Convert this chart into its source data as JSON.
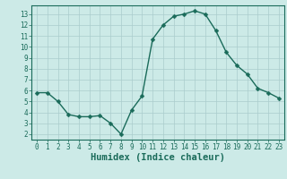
{
  "xlabel": "Humidex (Indice chaleur)",
  "ylabel": "",
  "x": [
    0,
    1,
    2,
    3,
    4,
    5,
    6,
    7,
    8,
    9,
    10,
    11,
    12,
    13,
    14,
    15,
    16,
    17,
    18,
    19,
    20,
    21,
    22,
    23
  ],
  "y": [
    5.8,
    5.8,
    5.0,
    3.8,
    3.6,
    3.6,
    3.7,
    3.0,
    2.0,
    4.2,
    5.5,
    10.7,
    12.0,
    12.8,
    13.0,
    13.3,
    13.0,
    11.5,
    9.5,
    8.3,
    7.5,
    6.2,
    5.8,
    5.3
  ],
  "line_color": "#1a6b5a",
  "marker": "D",
  "markersize": 2.5,
  "linewidth": 1.0,
  "bg_color": "#cceae7",
  "grid_color": "#aacccc",
  "ylim": [
    1.5,
    13.8
  ],
  "xlim": [
    -0.5,
    23.5
  ],
  "yticks": [
    2,
    3,
    4,
    5,
    6,
    7,
    8,
    9,
    10,
    11,
    12,
    13
  ],
  "xticks": [
    0,
    1,
    2,
    3,
    4,
    5,
    6,
    7,
    8,
    9,
    10,
    11,
    12,
    13,
    14,
    15,
    16,
    17,
    18,
    19,
    20,
    21,
    22,
    23
  ],
  "tick_fontsize": 5.5,
  "label_fontsize": 7.5,
  "axis_color": "#1a6b5a"
}
